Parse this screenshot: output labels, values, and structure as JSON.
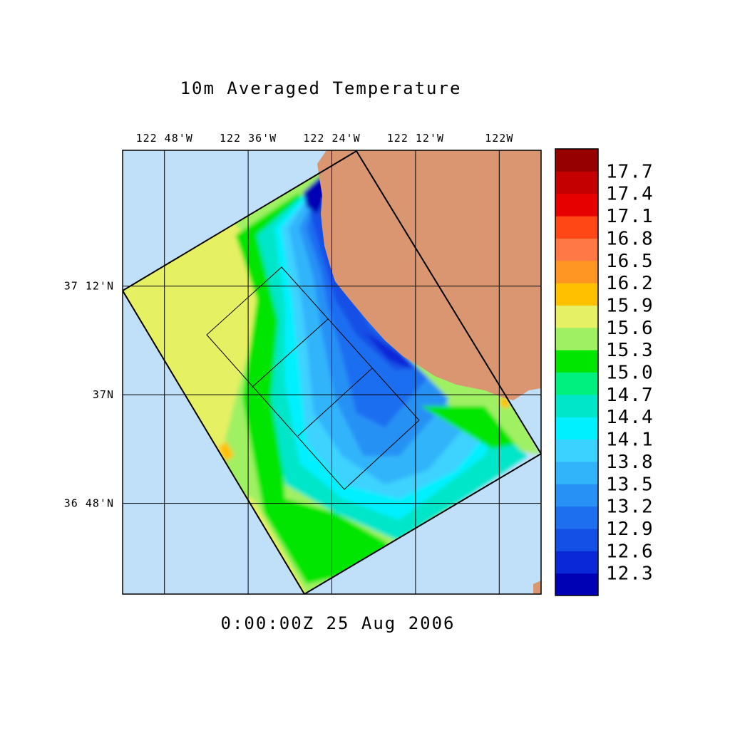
{
  "title": "10m Averaged Temperature",
  "timestamp": "0:00:00Z  25 Aug 2006",
  "map": {
    "lon_range": [
      -122.9,
      -121.9
    ],
    "lat_range": [
      36.633,
      37.45
    ],
    "lon_ticks": [
      {
        "value": -122.8,
        "label": "122 48'W"
      },
      {
        "value": -122.6,
        "label": "122 36'W"
      },
      {
        "value": -122.4,
        "label": "122 24'W"
      },
      {
        "value": -122.2,
        "label": "122 12'W"
      },
      {
        "value": -122.0,
        "label": "122W"
      }
    ],
    "lat_ticks": [
      {
        "value": 37.2,
        "label": "37 12'N"
      },
      {
        "value": 37.0,
        "label": "37N"
      },
      {
        "value": 36.8,
        "label": "36 48'N"
      }
    ],
    "colors": {
      "ocean_background": "#c0e0fa",
      "land": "#d99670",
      "grid_lines": "#000000"
    }
  },
  "colorbar": {
    "levels": [
      12.3,
      12.6,
      12.9,
      13.2,
      13.5,
      13.8,
      14.1,
      14.4,
      14.7,
      15.0,
      15.3,
      15.6,
      15.9,
      16.2,
      16.5,
      16.8,
      17.1,
      17.4,
      17.7
    ],
    "labels": [
      "17.7",
      "17.4",
      "17.1",
      "16.8",
      "16.5",
      "16.2",
      "15.9",
      "15.6",
      "15.3",
      "15.0",
      "14.7",
      "14.4",
      "14.1",
      "13.8",
      "13.5",
      "13.2",
      "12.9",
      "12.6",
      "12.3"
    ],
    "colors": [
      "#0000b4",
      "#0a28d7",
      "#1450e6",
      "#1e6ef0",
      "#2891f5",
      "#32b4fa",
      "#3cd2ff",
      "#00f0ff",
      "#00e6c8",
      "#00f080",
      "#00e600",
      "#a0f064",
      "#e6f064",
      "#ffc000",
      "#ff9624",
      "#ff7846",
      "#ff4614",
      "#e60000",
      "#c40000",
      "#960000"
    ]
  }
}
